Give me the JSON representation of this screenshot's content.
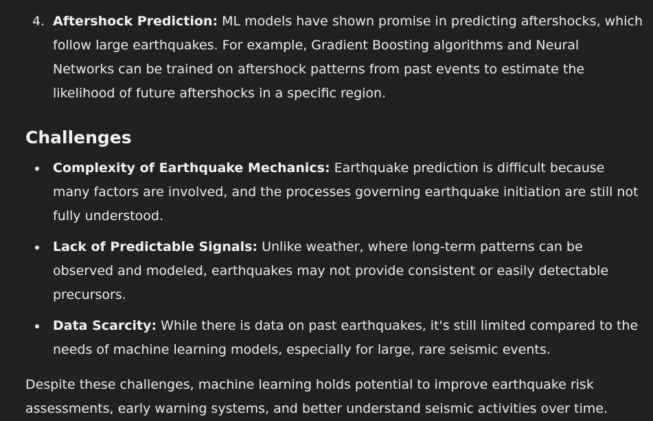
{
  "ordered_item": {
    "number": "4.",
    "title": "Aftershock Prediction:",
    "text": " ML models have shown promise in predicting aftershocks, which follow large earthquakes. For example, Gradient Boosting algorithms and Neural Networks can be trained on aftershock patterns from past events to estimate the likelihood of future aftershocks in a specific region."
  },
  "challenges": {
    "heading": "Challenges",
    "items": [
      {
        "title": "Complexity of Earthquake Mechanics:",
        "text": " Earthquake prediction is difficult because many factors are involved, and the processes governing earthquake initiation are still not fully understood."
      },
      {
        "title": "Lack of Predictable Signals:",
        "text": " Unlike weather, where long-term patterns can be observed and modeled, earthquakes may not provide consistent or easily detectable precursors."
      },
      {
        "title": "Data Scarcity:",
        "text": " While there is data on past earthquakes, it's still limited compared to the needs of machine learning models, especially for large, rare seismic events."
      }
    ]
  },
  "conclusion": "Despite these challenges, machine learning holds potential to improve earthquake risk assessments, early warning systems, and better understand seismic activities over time."
}
